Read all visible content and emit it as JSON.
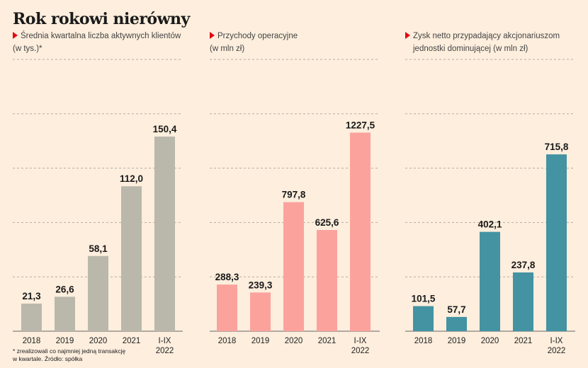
{
  "title": "Rok rokowi nierówny",
  "footnote": {
    "line1": "* zrealizowali co najmniej jedną transakcję",
    "line2": "w kwartale. Źródło: spółka"
  },
  "colors": {
    "background": "#fdeedd",
    "marker": "#e30613"
  },
  "chart_data": [
    {
      "type": "bar",
      "title_line1": "Średnia kwartalna liczba aktywnych klientów",
      "title_line2": "(w tys.)*",
      "categories": [
        [
          "2018"
        ],
        [
          "2019"
        ],
        [
          "2020"
        ],
        [
          "2021"
        ],
        [
          "I-IX",
          "2022"
        ]
      ],
      "values": [
        21.3,
        26.6,
        58.1,
        112.0,
        150.4
      ],
      "labels": [
        "21,3",
        "26,6",
        "58,1",
        "112,0",
        "150,4"
      ],
      "ylim": [
        0,
        210
      ],
      "color": "#b9b8ab"
    },
    {
      "type": "bar",
      "title_line1": "Przychody operacyjne",
      "title_line2": "(w mln zł)",
      "categories": [
        [
          "2018"
        ],
        [
          "2019"
        ],
        [
          "2020"
        ],
        [
          "2021"
        ],
        [
          "I-IX",
          "2022"
        ]
      ],
      "values": [
        288.3,
        239.3,
        797.8,
        625.6,
        1227.5
      ],
      "labels": [
        "288,3",
        "239,3",
        "797,8",
        "625,6",
        "1227,5"
      ],
      "ylim": [
        0,
        1680
      ],
      "color": "#fca29d"
    },
    {
      "type": "bar",
      "title_line1": "Zysk netto przypadający akcjonariuszom",
      "title_line2": "jednostki dominującej (w mln zł)",
      "categories": [
        [
          "2018"
        ],
        [
          "2019"
        ],
        [
          "2020"
        ],
        [
          "2021"
        ],
        [
          "I-IX",
          "2022"
        ]
      ],
      "values": [
        101.5,
        57.7,
        402.1,
        237.8,
        715.8
      ],
      "labels": [
        "101,5",
        "57,7",
        "402,1",
        "237,8",
        "715,8"
      ],
      "ylim": [
        0,
        1100
      ],
      "color": "#4393a3"
    }
  ]
}
